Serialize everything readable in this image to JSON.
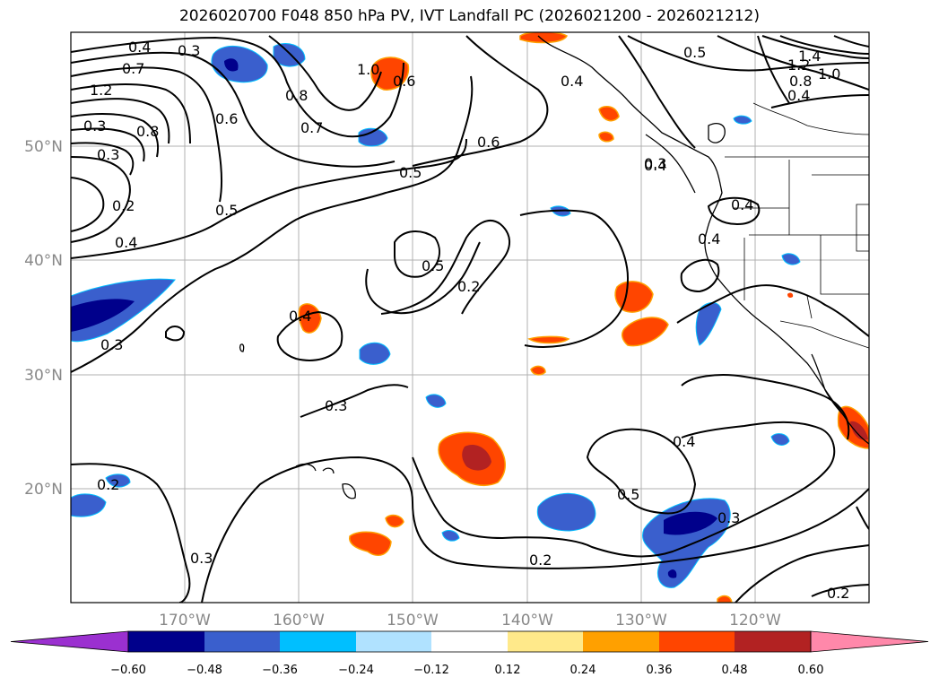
{
  "title": "2026020700 F048 850 hPa PV, IVT Landfall PC (2026021200 - 2026021212)",
  "lat_labels": [
    "50°N",
    "40°N",
    "30°N",
    "20°N"
  ],
  "lon_labels": [
    "170°W",
    "160°W",
    "150°W",
    "140°W",
    "130°W",
    "120°W"
  ],
  "colorbar": {
    "ticks": [
      "−0.60",
      "−0.48",
      "−0.36",
      "−0.24",
      "−0.12",
      "0.12",
      "0.24",
      "0.36",
      "0.48",
      "0.60"
    ],
    "colors": [
      "#9b30d0",
      "#00008b",
      "#3a5fcd",
      "#00bfff",
      "#b0e2ff",
      "#ffffff",
      "#ffe98a",
      "#ffa000",
      "#ff4500",
      "#b22222",
      "#ff88aa"
    ]
  },
  "contour_labels": [
    "0.4",
    "0.3",
    "0.7",
    "1.2",
    "0.6",
    "0.8",
    "0.7",
    "1.0",
    "0.6",
    "0.4",
    "0.5",
    "1.4",
    "1.2",
    "1.0",
    "0.8",
    "0.4",
    "0.6",
    "0.3",
    "0.5",
    "0.5",
    "0.4",
    "0.2",
    "0.4",
    "0.5",
    "0.2",
    "0.3",
    "0.3",
    "0.4",
    "0.3",
    "0.4",
    "0.2",
    "0.5",
    "0.3",
    "0.2",
    "0.2",
    "0.3",
    "0.8",
    "0.4",
    "0.4",
    "0.3"
  ]
}
